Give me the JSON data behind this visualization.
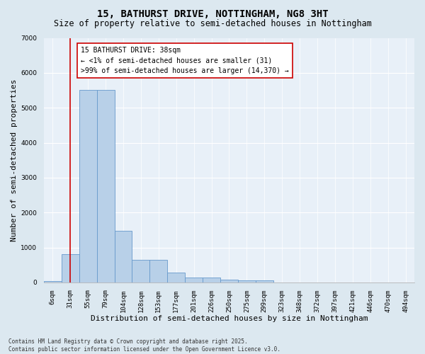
{
  "title": "15, BATHURST DRIVE, NOTTINGHAM, NG8 3HT",
  "subtitle": "Size of property relative to semi-detached houses in Nottingham",
  "xlabel": "Distribution of semi-detached houses by size in Nottingham",
  "ylabel": "Number of semi-detached properties",
  "categories": [
    "6sqm",
    "31sqm",
    "55sqm",
    "79sqm",
    "104sqm",
    "128sqm",
    "153sqm",
    "177sqm",
    "201sqm",
    "226sqm",
    "250sqm",
    "275sqm",
    "299sqm",
    "323sqm",
    "348sqm",
    "372sqm",
    "397sqm",
    "421sqm",
    "446sqm",
    "470sqm",
    "494sqm"
  ],
  "bar_heights": [
    40,
    810,
    5520,
    5520,
    1480,
    650,
    650,
    290,
    140,
    140,
    80,
    50,
    50,
    0,
    0,
    0,
    0,
    0,
    0,
    0,
    0
  ],
  "bar_color": "#b8d0e8",
  "bar_edge_color": "#6699cc",
  "vline_x": 1,
  "vline_color": "#cc0000",
  "ylim": [
    0,
    7000
  ],
  "yticks": [
    0,
    1000,
    2000,
    3000,
    4000,
    5000,
    6000,
    7000
  ],
  "annotation_title": "15 BATHURST DRIVE: 38sqm",
  "annotation_line1": "← <1% of semi-detached houses are smaller (31)",
  "annotation_line2": ">99% of semi-detached houses are larger (14,370) →",
  "annotation_box_color": "#cc0000",
  "footer_line1": "Contains HM Land Registry data © Crown copyright and database right 2025.",
  "footer_line2": "Contains public sector information licensed under the Open Government Licence v3.0.",
  "bg_color": "#dce8f0",
  "plot_bg_color": "#e8f0f8",
  "grid_color": "#ffffff",
  "title_fontsize": 10,
  "subtitle_fontsize": 8.5,
  "axis_label_fontsize": 8,
  "tick_fontsize": 6.5,
  "annotation_fontsize": 7,
  "footer_fontsize": 5.5
}
